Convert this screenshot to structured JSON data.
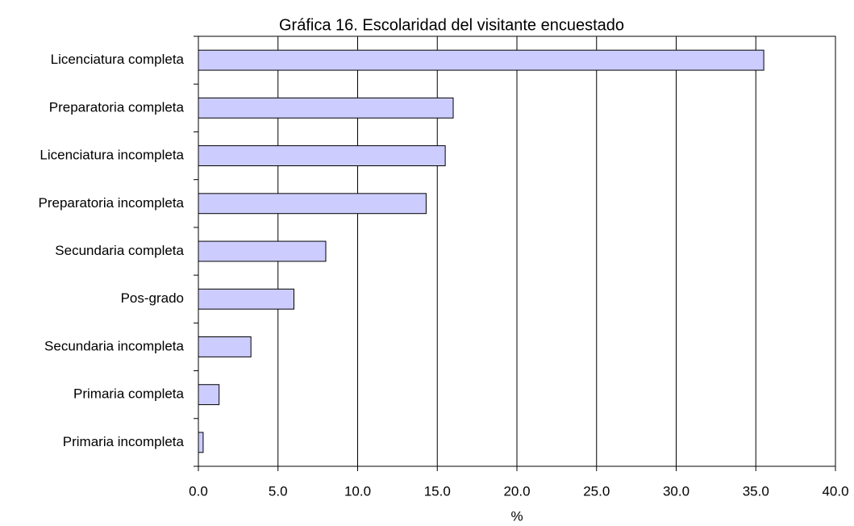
{
  "chart_data": {
    "type": "bar",
    "orientation": "horizontal",
    "title": "Gráfica 16. Escolaridad del visitante encuestado",
    "x_label": "%",
    "categories": [
      "Licenciatura completa",
      "Preparatoria completa",
      "Licenciatura incompleta",
      "Preparatoria incompleta",
      "Secundaria completa",
      "Pos-grado",
      "Secundaria incompleta",
      "Primaria completa",
      "Primaria incompleta"
    ],
    "values": [
      35.5,
      16.0,
      15.5,
      14.3,
      8.0,
      6.0,
      3.3,
      1.3,
      0.3
    ],
    "color": "#ccccff",
    "xlim": [
      0,
      40
    ],
    "xticks": [
      {
        "value": 0,
        "label": "0.0"
      },
      {
        "value": 5,
        "label": "5.0"
      },
      {
        "value": 10,
        "label": "10.0"
      },
      {
        "value": 15,
        "label": "15.0"
      },
      {
        "value": 20,
        "label": "20.0"
      },
      {
        "value": 25,
        "label": "25.0"
      },
      {
        "value": 30,
        "label": "30.0"
      },
      {
        "value": 35,
        "label": "35.0"
      },
      {
        "value": 40,
        "label": "40.0"
      }
    ],
    "grid": true
  }
}
